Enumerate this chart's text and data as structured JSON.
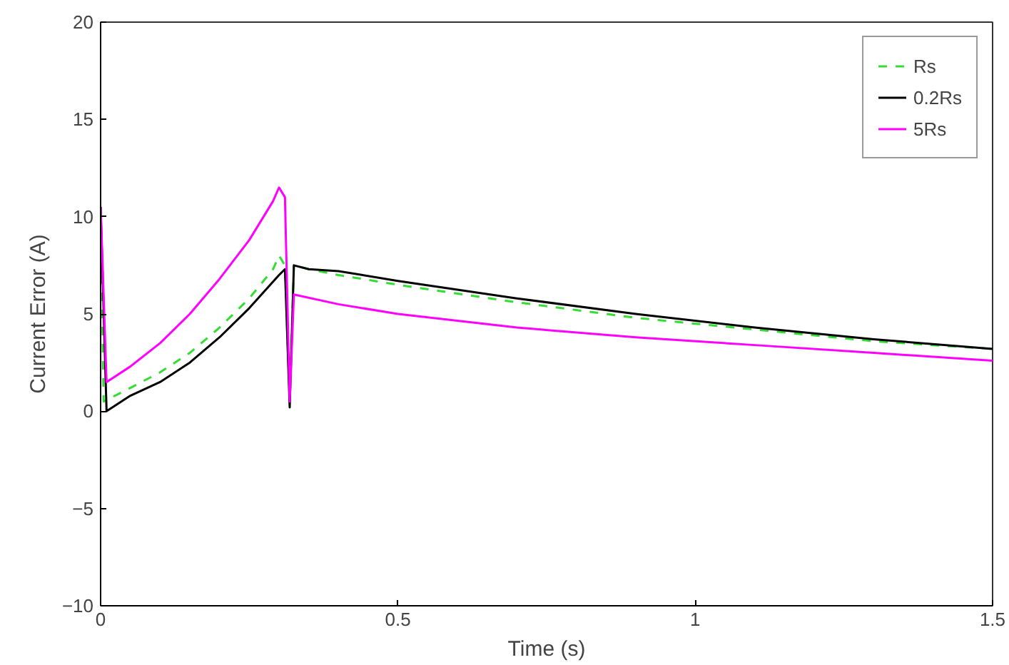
{
  "chart_data": {
    "type": "line",
    "xlabel": "Time (s)",
    "ylabel": "Current Error (A)",
    "xlim": [
      0,
      1.5
    ],
    "ylim": [
      -10,
      20
    ],
    "xticks": [
      0,
      0.5,
      1,
      1.5
    ],
    "yticks": [
      -10,
      -5,
      0,
      5,
      10,
      15,
      20
    ],
    "grid": false,
    "legend": "top right",
    "series": [
      {
        "name": "Rs",
        "color": "#33dd33",
        "line_style": "dashed",
        "x": [
          0,
          0.005,
          0.05,
          0.1,
          0.15,
          0.2,
          0.25,
          0.29,
          0.3,
          0.31,
          0.318,
          0.325,
          0.35,
          0.4,
          0.5,
          0.7,
          0.9,
          1.1,
          1.3,
          1.5
        ],
        "values": [
          10.5,
          0.5,
          1.2,
          2.0,
          3.0,
          4.3,
          5.8,
          7.3,
          8.0,
          7.5,
          0.5,
          7.5,
          7.3,
          7.0,
          6.5,
          5.6,
          4.8,
          4.2,
          3.6,
          3.2
        ]
      },
      {
        "name": "0.2Rs",
        "color": "#000000",
        "line_style": "solid",
        "x": [
          0,
          0.01,
          0.05,
          0.1,
          0.15,
          0.2,
          0.25,
          0.3,
          0.31,
          0.318,
          0.325,
          0.35,
          0.4,
          0.5,
          0.7,
          0.9,
          1.1,
          1.3,
          1.5
        ],
        "values": [
          10.5,
          0.0,
          0.8,
          1.5,
          2.5,
          3.8,
          5.3,
          7.0,
          7.3,
          0.2,
          7.5,
          7.3,
          7.2,
          6.7,
          5.8,
          5.0,
          4.3,
          3.7,
          3.2
        ]
      },
      {
        "name": "5Rs",
        "color": "#ff00ff",
        "line_style": "solid",
        "x": [
          0,
          0.01,
          0.05,
          0.1,
          0.15,
          0.2,
          0.25,
          0.29,
          0.3,
          0.31,
          0.318,
          0.325,
          0.4,
          0.5,
          0.7,
          0.9,
          1.1,
          1.3,
          1.5
        ],
        "values": [
          10.5,
          1.5,
          2.3,
          3.5,
          5.0,
          6.8,
          8.8,
          10.8,
          11.5,
          11.0,
          0.5,
          6.0,
          5.5,
          5.0,
          4.3,
          3.8,
          3.4,
          3.0,
          2.6
        ]
      }
    ]
  }
}
